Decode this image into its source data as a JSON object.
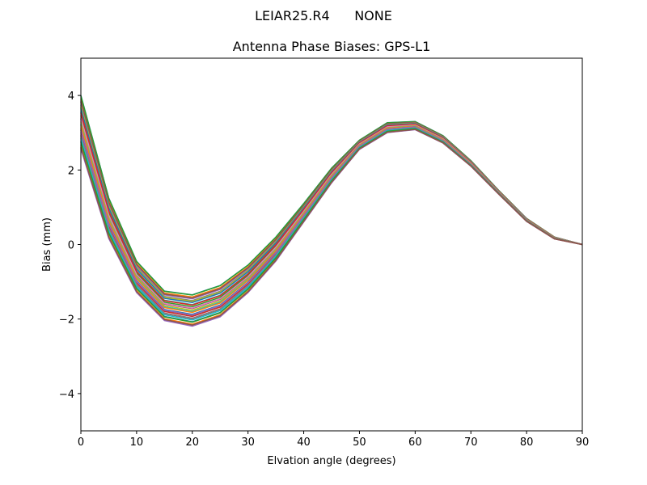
{
  "figure": {
    "suptitle": "LEIAR25.R4      NONE"
  },
  "chart_data": {
    "type": "line",
    "title": "Antenna Phase Biases: GPS-L1",
    "xlabel": "Elvation angle (degrees)",
    "ylabel": "Bias (mm)",
    "xlim": [
      0,
      90
    ],
    "ylim": [
      -5,
      5
    ],
    "xticks": [
      0,
      10,
      20,
      30,
      40,
      50,
      60,
      70,
      80,
      90
    ],
    "yticks": [
      -4,
      -2,
      0,
      2,
      4
    ],
    "grid": false,
    "legend": "none",
    "x": [
      0,
      5,
      10,
      15,
      20,
      25,
      30,
      35,
      40,
      45,
      50,
      55,
      60,
      65,
      70,
      75,
      80,
      85,
      90
    ],
    "series_count": 36,
    "colors": [
      "#1f77b4",
      "#ff7f0e",
      "#2ca02c",
      "#d62728",
      "#9467bd",
      "#8c564b",
      "#e377c2",
      "#7f7f7f",
      "#bcbd22",
      "#17becf"
    ],
    "envelope": {
      "upper": [
        4.0,
        1.25,
        -0.45,
        -1.25,
        -1.35,
        -1.1,
        -0.55,
        0.2,
        1.1,
        2.05,
        2.8,
        3.27,
        3.3,
        2.92,
        2.25,
        1.45,
        0.7,
        0.2,
        0.0
      ],
      "lower": [
        2.55,
        0.15,
        -1.3,
        -2.05,
        -2.2,
        -1.95,
        -1.3,
        -0.45,
        0.6,
        1.65,
        2.55,
        3.0,
        3.08,
        2.72,
        2.1,
        1.35,
        0.62,
        0.15,
        0.0
      ]
    }
  }
}
